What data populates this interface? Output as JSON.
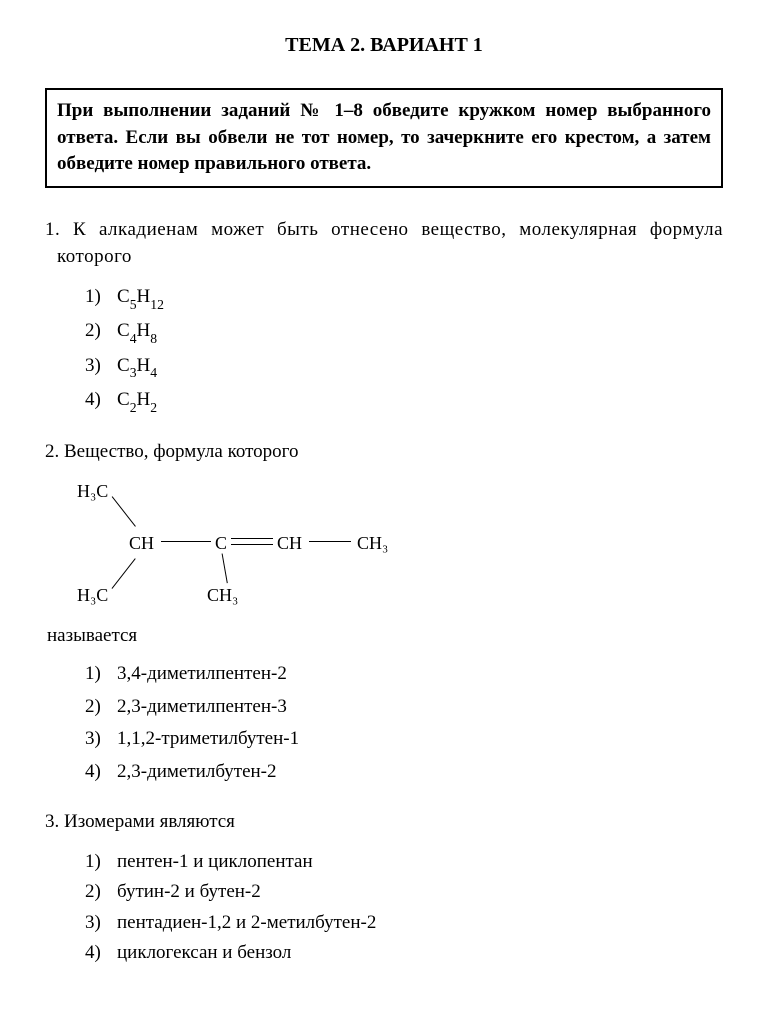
{
  "title": "ТЕМА 2. ВАРИАНТ 1",
  "instructions": "При выполнении заданий № 1–8 обведите кружком номер выбранного ответа. Если вы обвели не тот номер, то зачеркните его крестом, а затем обведите номер правильного ответа.",
  "q1": {
    "num": "1.",
    "text": "К алкадиенам может быть отнесено вещество, молекулярная формула которого",
    "options": [
      {
        "n": "1)",
        "formula": [
          [
            "C",
            "5"
          ],
          [
            "H",
            "12"
          ]
        ]
      },
      {
        "n": "2)",
        "formula": [
          [
            "C",
            "4"
          ],
          [
            "H",
            "8"
          ]
        ]
      },
      {
        "n": "3)",
        "formula": [
          [
            "C",
            "3"
          ],
          [
            "H",
            "4"
          ]
        ]
      },
      {
        "n": "4)",
        "formula": [
          [
            "C",
            "2"
          ],
          [
            "H",
            "2"
          ]
        ]
      }
    ]
  },
  "q2": {
    "num": "2.",
    "text": "Вещество, формула которого",
    "aftertext": "называется",
    "molecule": {
      "atoms": {
        "h3c_top": "H₃C",
        "h3c_bot": "H₃C",
        "ch1": "CH",
        "c_mid": "C",
        "ch3_mid": "CH₃",
        "ch2": "CH",
        "ch3_end": "CH₃"
      }
    },
    "options": [
      {
        "n": "1)",
        "t": "3,4-диметилпентен-2"
      },
      {
        "n": "2)",
        "t": "2,3-диметилпентен-3"
      },
      {
        "n": "3)",
        "t": "1,1,2-триметилбутен-1"
      },
      {
        "n": "4)",
        "t": "2,3-диметилбутен-2"
      }
    ]
  },
  "q3": {
    "num": "3.",
    "text": "Изомерами являются",
    "options": [
      {
        "n": "1)",
        "t": "пентен-1 и циклопентан"
      },
      {
        "n": "2)",
        "t": "бутин-2 и бутен-2"
      },
      {
        "n": "3)",
        "t": "пентадиен-1,2 и 2-метилбутен-2"
      },
      {
        "n": "4)",
        "t": "циклогексан и бензол"
      }
    ]
  },
  "colors": {
    "text": "#000000",
    "background": "#ffffff",
    "border": "#000000"
  }
}
